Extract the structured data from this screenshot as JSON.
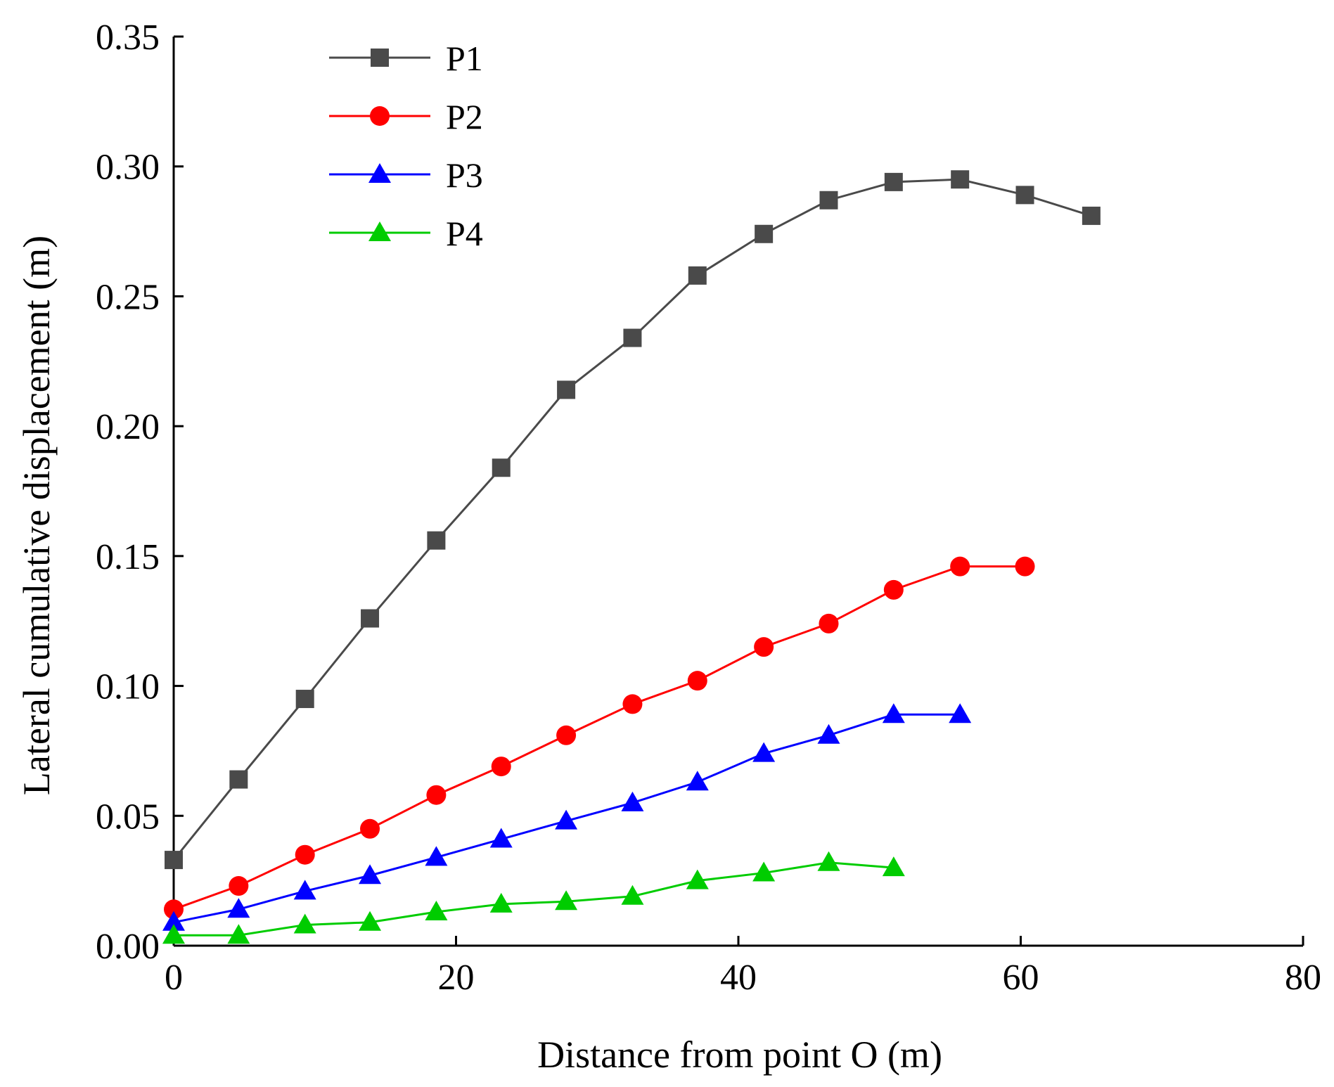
{
  "chart_data": {
    "type": "line",
    "xlabel": "Distance from point O (m)",
    "ylabel": "Lateral cumulative displacement (m)",
    "xlim": [
      0,
      80
    ],
    "ylim": [
      0,
      0.35
    ],
    "xticks": [
      0,
      20,
      40,
      60,
      80
    ],
    "yticks": [
      0,
      0.05,
      0.1,
      0.15,
      0.2,
      0.25,
      0.3,
      0.35
    ],
    "xtick_labels": [
      "0",
      "20",
      "40",
      "60",
      "80"
    ],
    "ytick_labels": [
      "0.00",
      "0.05",
      "0.10",
      "0.15",
      "0.20",
      "0.25",
      "0.30",
      "0.35"
    ],
    "grid": false,
    "legend_position": "top-left",
    "series": [
      {
        "name": "P1",
        "color": "#4a4a4a",
        "marker": "square",
        "x": [
          0,
          4.6,
          9.3,
          13.9,
          18.6,
          23.2,
          27.8,
          32.5,
          37.1,
          41.8,
          46.4,
          51.0,
          55.7,
          60.3,
          65.0
        ],
        "y": [
          0.033,
          0.064,
          0.095,
          0.126,
          0.156,
          0.184,
          0.214,
          0.234,
          0.258,
          0.274,
          0.287,
          0.294,
          0.295,
          0.289,
          0.281
        ]
      },
      {
        "name": "P2",
        "color": "#ff0000",
        "marker": "circle",
        "x": [
          0,
          4.6,
          9.3,
          13.9,
          18.6,
          23.2,
          27.8,
          32.5,
          37.1,
          41.8,
          46.4,
          51.0,
          55.7,
          60.3
        ],
        "y": [
          0.014,
          0.023,
          0.035,
          0.045,
          0.058,
          0.069,
          0.081,
          0.093,
          0.102,
          0.115,
          0.124,
          0.137,
          0.146,
          0.146
        ]
      },
      {
        "name": "P3",
        "color": "#0000ff",
        "marker": "triangle",
        "x": [
          0,
          4.6,
          9.3,
          13.9,
          18.6,
          23.2,
          27.8,
          32.5,
          37.1,
          41.8,
          46.4,
          51.0,
          55.7
        ],
        "y": [
          0.009,
          0.014,
          0.021,
          0.027,
          0.034,
          0.041,
          0.048,
          0.055,
          0.063,
          0.074,
          0.081,
          0.089,
          0.089
        ]
      },
      {
        "name": "P4",
        "color": "#00cc00",
        "marker": "triangle",
        "x": [
          0,
          4.6,
          9.3,
          13.9,
          18.6,
          23.2,
          27.8,
          32.5,
          37.1,
          41.8,
          46.4,
          51.0
        ],
        "y": [
          0.004,
          0.004,
          0.008,
          0.009,
          0.013,
          0.016,
          0.017,
          0.019,
          0.025,
          0.028,
          0.032,
          0.03
        ]
      }
    ]
  }
}
